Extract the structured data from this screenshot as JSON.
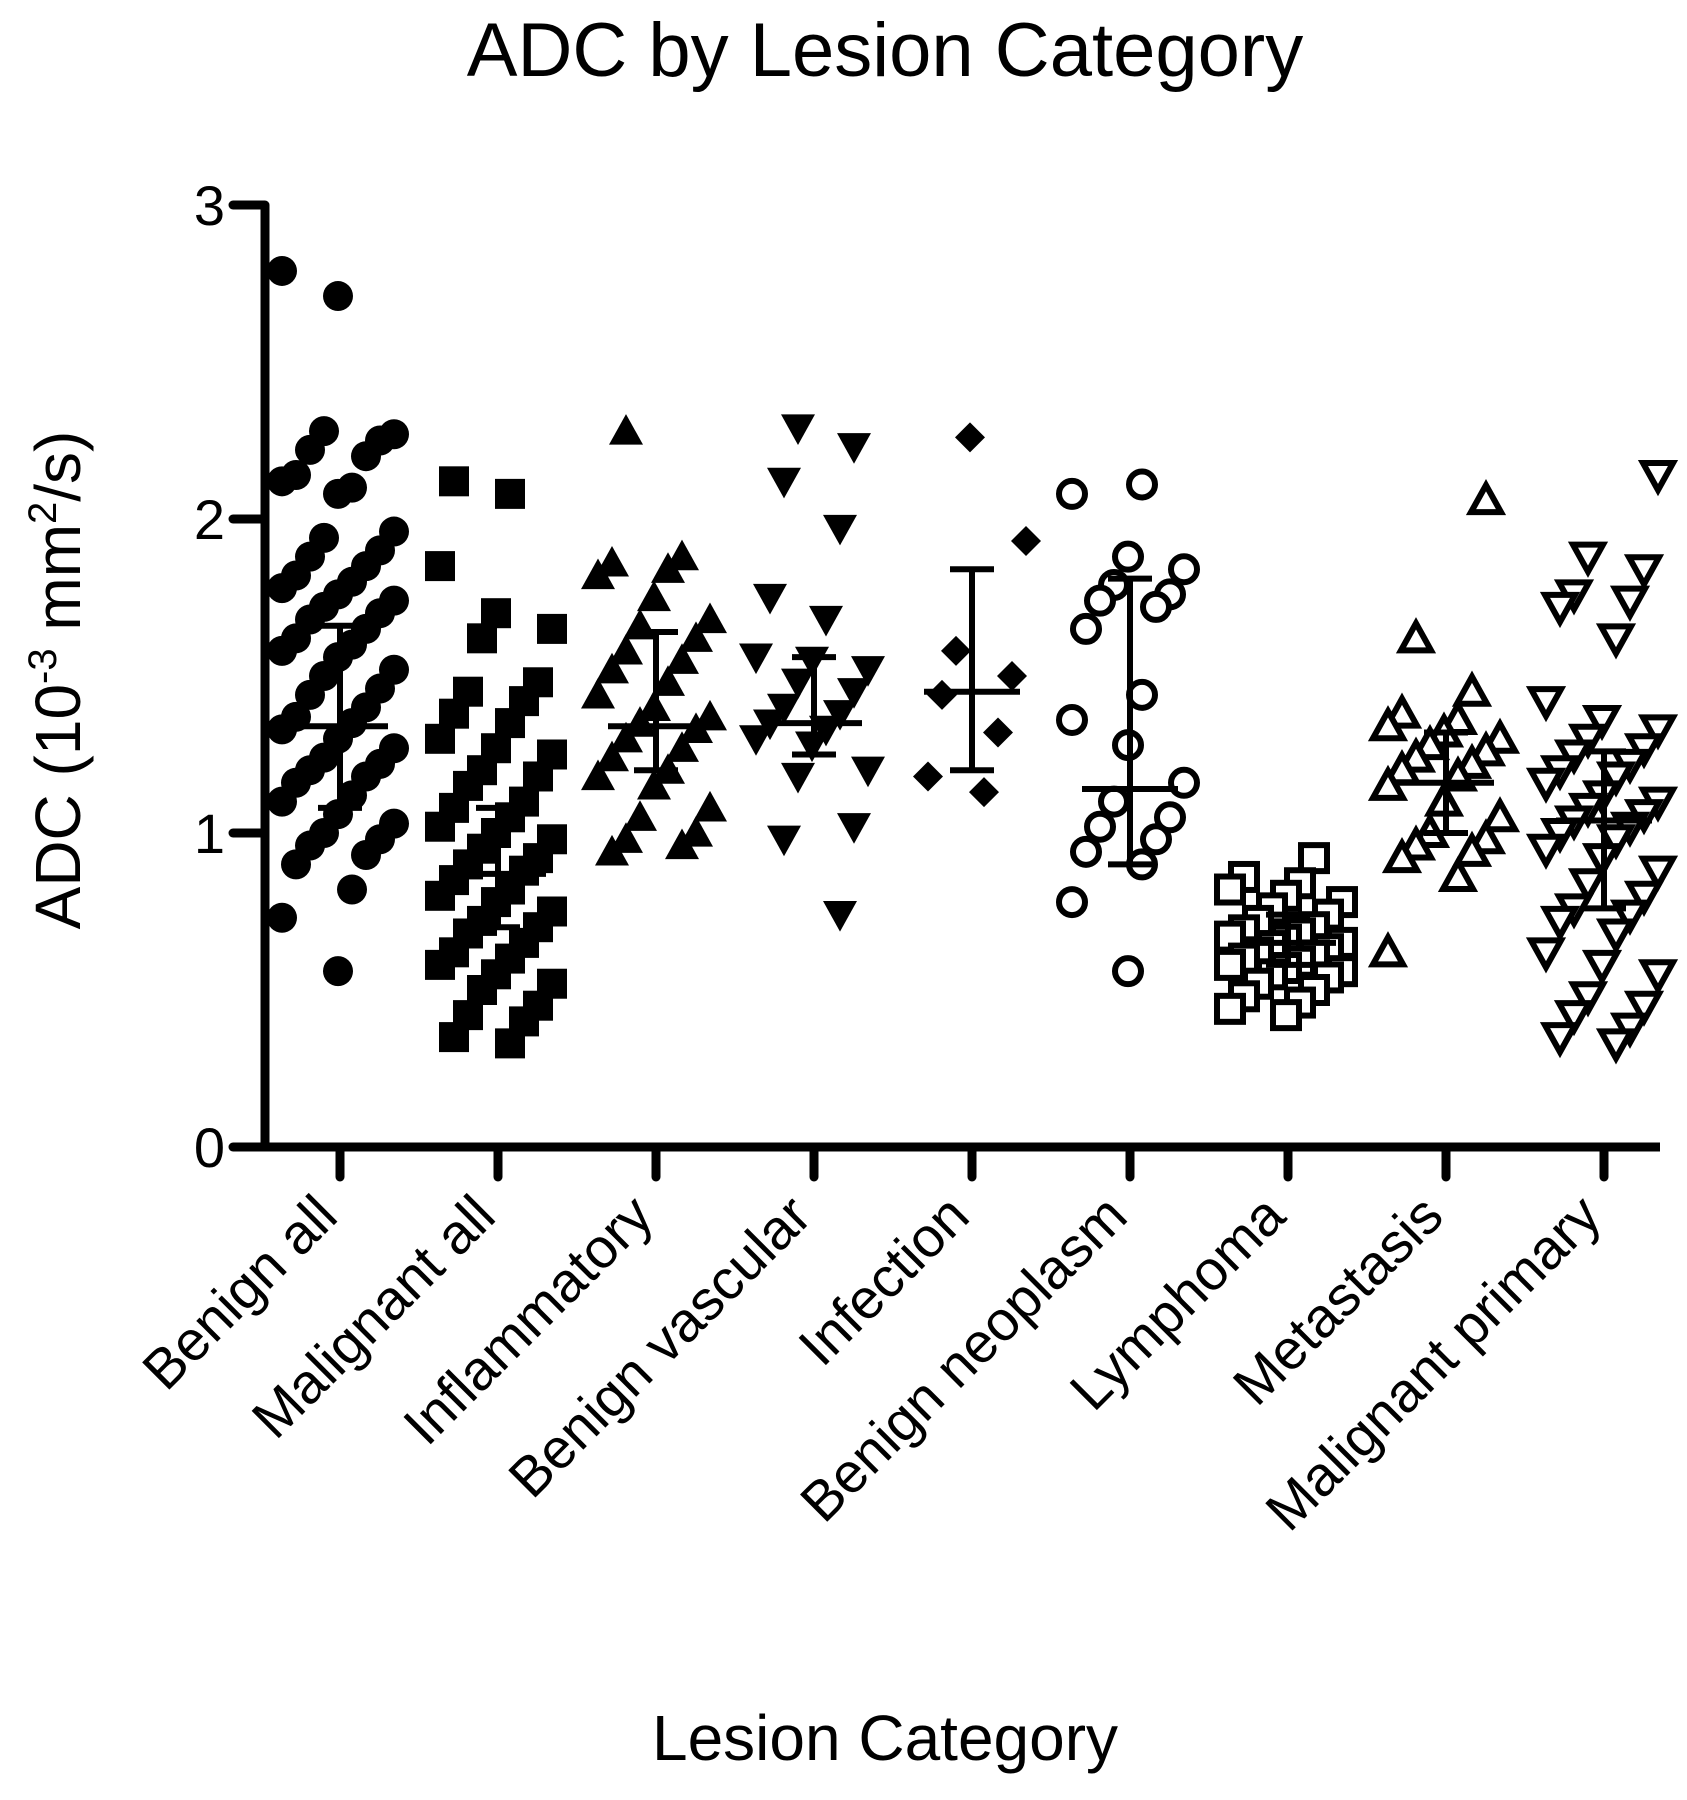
{
  "chart_data": {
    "type": "scatter",
    "title": "ADC by Lesion Category",
    "xlabel": "Lesion Category",
    "ylabel": "ADC (10",
    "ylabel_sup1": "-3",
    "ylabel_mid": " mm",
    "ylabel_sup2": "2",
    "ylabel_end": "/s)",
    "ylim": [
      0,
      3
    ],
    "yticks": [
      "0",
      "1",
      "2",
      "3"
    ],
    "grid": false,
    "categories": [
      "Benign all",
      "Malignant all",
      "Inflammatory",
      "Benign vascular",
      "Infection",
      "Benign neoplasm",
      "Lymphoma",
      "Metastasis",
      "Malignant primary"
    ],
    "series": [
      {
        "marker": "filled-circle",
        "mean": 1.34,
        "err_low": 1.08,
        "err_high": 1.66,
        "values": [
          2.79,
          2.71,
          2.27,
          2.28,
          2.25,
          2.22,
          2.2,
          2.14,
          2.1,
          2.12,
          2.08,
          1.96,
          1.94,
          1.9,
          1.88,
          1.85,
          1.82,
          1.8,
          1.78,
          1.76,
          1.74,
          1.72,
          1.7,
          1.68,
          1.65,
          1.62,
          1.6,
          1.58,
          1.56,
          1.52,
          1.5,
          1.46,
          1.44,
          1.4,
          1.37,
          1.35,
          1.33,
          1.3,
          1.27,
          1.24,
          1.22,
          1.2,
          1.18,
          1.16,
          1.12,
          1.1,
          1.06,
          1.03,
          1.0,
          0.98,
          0.96,
          0.93,
          0.9,
          0.82,
          0.73,
          0.56
        ]
      },
      {
        "marker": "filled-square",
        "mean": 0.87,
        "err_low": 0.7,
        "err_high": 1.08,
        "values": [
          2.12,
          2.08,
          1.85,
          1.7,
          1.65,
          1.62,
          1.48,
          1.45,
          1.42,
          1.38,
          1.35,
          1.3,
          1.27,
          1.25,
          1.2,
          1.18,
          1.15,
          1.1,
          1.08,
          1.05,
          1.02,
          1.0,
          0.98,
          0.95,
          0.92,
          0.9,
          0.88,
          0.85,
          0.82,
          0.8,
          0.78,
          0.75,
          0.72,
          0.7,
          0.68,
          0.65,
          0.62,
          0.6,
          0.58,
          0.55,
          0.52,
          0.5,
          0.45,
          0.42,
          0.4,
          0.35,
          0.33
        ]
      },
      {
        "marker": "filled-triangle-up",
        "mean": 1.34,
        "err_low": 1.2,
        "err_high": 1.64,
        "values": [
          2.28,
          1.88,
          1.86,
          1.84,
          1.82,
          1.75,
          1.68,
          1.66,
          1.62,
          1.58,
          1.55,
          1.52,
          1.48,
          1.44,
          1.4,
          1.37,
          1.35,
          1.33,
          1.3,
          1.27,
          1.24,
          1.2,
          1.18,
          1.15,
          1.08,
          1.05,
          1.0,
          0.98,
          0.96,
          0.94
        ]
      },
      {
        "marker": "filled-triangle-down",
        "mean": 1.35,
        "err_low": 1.25,
        "err_high": 1.56,
        "values": [
          2.29,
          2.23,
          2.12,
          1.97,
          1.75,
          1.68,
          1.56,
          1.55,
          1.52,
          1.48,
          1.45,
          1.4,
          1.38,
          1.35,
          1.33,
          1.3,
          1.28,
          1.2,
          1.18,
          1.02,
          0.98,
          0.74
        ]
      },
      {
        "marker": "filled-diamond",
        "mean": 1.45,
        "err_low": 1.2,
        "err_high": 1.84,
        "values": [
          2.26,
          1.93,
          1.58,
          1.5,
          1.44,
          1.32,
          1.18,
          1.13
        ]
      },
      {
        "marker": "open-circle",
        "mean": 1.14,
        "err_low": 0.9,
        "err_high": 1.81,
        "values": [
          2.11,
          2.08,
          1.88,
          1.84,
          1.79,
          1.76,
          1.74,
          1.72,
          1.65,
          1.44,
          1.36,
          1.28,
          1.16,
          1.1,
          1.05,
          1.02,
          0.98,
          0.94,
          0.9,
          0.78,
          0.56
        ]
      },
      {
        "marker": "open-square",
        "mean": 0.65,
        "err_low": 0.58,
        "err_high": 0.74,
        "values": [
          0.92,
          0.86,
          0.84,
          0.82,
          0.8,
          0.78,
          0.76,
          0.74,
          0.72,
          0.7,
          0.69,
          0.68,
          0.67,
          0.66,
          0.65,
          0.64,
          0.63,
          0.62,
          0.61,
          0.6,
          0.59,
          0.58,
          0.57,
          0.56,
          0.55,
          0.54,
          0.52,
          0.5,
          0.48,
          0.46,
          0.44,
          0.42
        ]
      },
      {
        "marker": "open-triangle-up",
        "mean": 1.16,
        "err_low": 1.0,
        "err_high": 1.32,
        "values": [
          2.06,
          1.62,
          1.45,
          1.38,
          1.36,
          1.34,
          1.32,
          1.3,
          1.28,
          1.26,
          1.24,
          1.22,
          1.2,
          1.18,
          1.15,
          1.1,
          1.05,
          1.0,
          0.98,
          0.96,
          0.94,
          0.92,
          0.86,
          0.62
        ]
      },
      {
        "marker": "open-triangle-down",
        "mean": 1.04,
        "err_low": 0.76,
        "err_high": 1.26,
        "values": [
          2.14,
          1.88,
          1.84,
          1.76,
          1.74,
          1.72,
          1.62,
          1.42,
          1.36,
          1.33,
          1.3,
          1.27,
          1.25,
          1.22,
          1.2,
          1.18,
          1.16,
          1.12,
          1.1,
          1.08,
          1.06,
          1.04,
          1.02,
          1.0,
          0.98,
          0.95,
          0.92,
          0.88,
          0.84,
          0.8,
          0.76,
          0.74,
          0.72,
          0.68,
          0.62,
          0.58,
          0.55,
          0.48,
          0.45,
          0.42,
          0.38,
          0.35,
          0.33
        ]
      }
    ]
  }
}
